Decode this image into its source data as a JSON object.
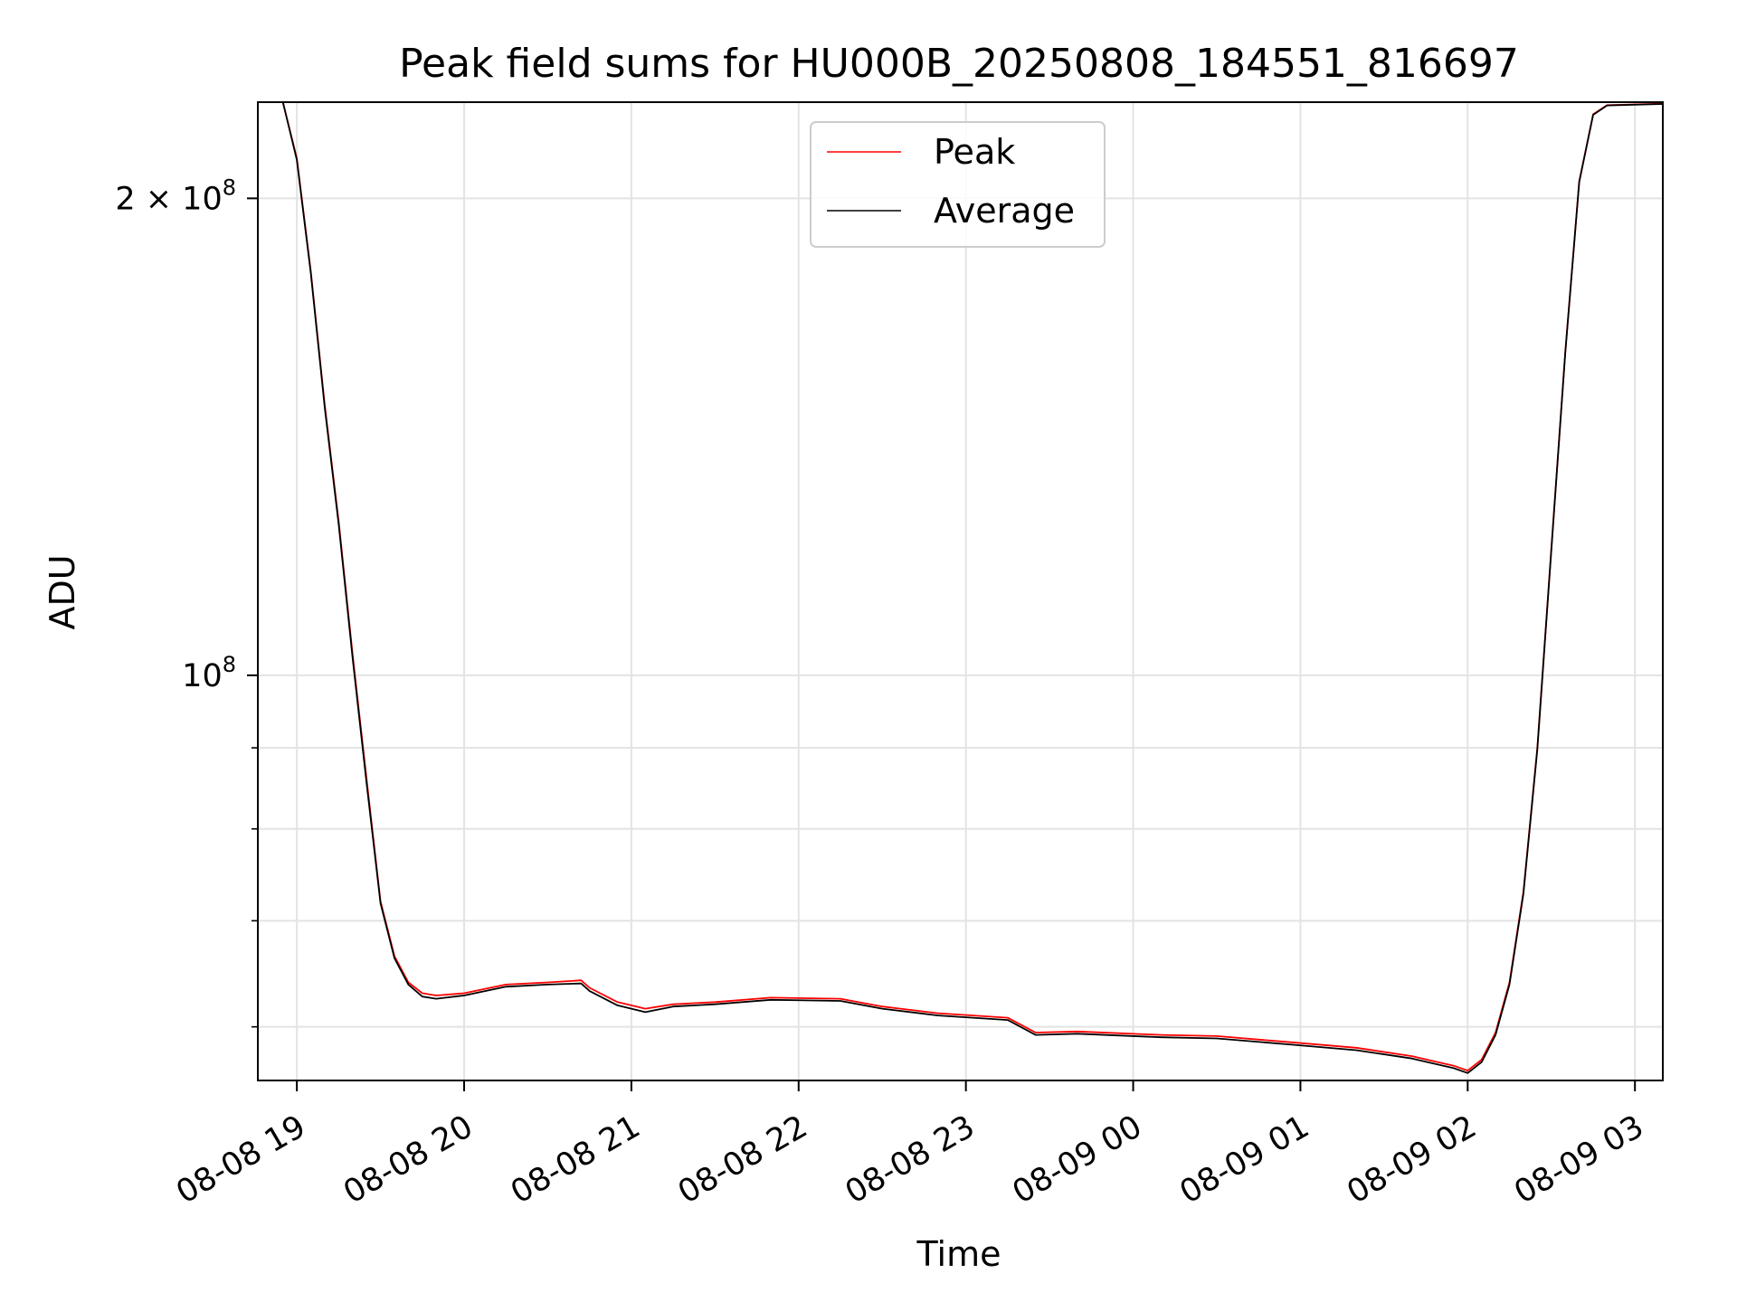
{
  "chart_data": {
    "type": "line",
    "title": "Peak field sums for HU000B_20250808_184551_816697",
    "xlabel": "Time",
    "ylabel": "ADU",
    "x_ticks": [
      "08-08 19",
      "08-08 20",
      "08-08 21",
      "08-08 22",
      "08-08 23",
      "08-09 00",
      "08-09 01",
      "08-09 02",
      "08-09 03"
    ],
    "y_ticks": [
      {
        "base": "2 × 10",
        "exp": "8"
      },
      {
        "base": "10",
        "exp": "8"
      }
    ],
    "y_scale": "log",
    "ylim": [
      55500000,
      230000000
    ],
    "xlim": [
      "2025-08-08 18:46",
      "2025-08-09 03:10"
    ],
    "grid": true,
    "legend_position": "top-center",
    "series": [
      {
        "name": "Peak",
        "color": "#ff0000",
        "x": [
          "2025-08-08 18:46",
          "2025-08-08 18:55",
          "2025-08-08 19:00",
          "2025-08-08 19:05",
          "2025-08-08 19:10",
          "2025-08-08 19:15",
          "2025-08-08 19:20",
          "2025-08-08 19:25",
          "2025-08-08 19:30",
          "2025-08-08 19:35",
          "2025-08-08 19:40",
          "2025-08-08 19:45",
          "2025-08-08 19:50",
          "2025-08-08 20:00",
          "2025-08-08 20:15",
          "2025-08-08 20:30",
          "2025-08-08 20:42",
          "2025-08-08 20:45",
          "2025-08-08 20:55",
          "2025-08-08 21:05",
          "2025-08-08 21:15",
          "2025-08-08 21:30",
          "2025-08-08 21:50",
          "2025-08-08 22:15",
          "2025-08-08 22:30",
          "2025-08-08 22:50",
          "2025-08-08 23:15",
          "2025-08-08 23:25",
          "2025-08-08 23:40",
          "2025-08-09 00:10",
          "2025-08-09 00:30",
          "2025-08-09 00:55",
          "2025-08-09 01:20",
          "2025-08-09 01:40",
          "2025-08-09 01:55",
          "2025-08-09 02:00",
          "2025-08-09 02:05",
          "2025-08-09 02:10",
          "2025-08-09 02:15",
          "2025-08-09 02:20",
          "2025-08-09 02:25",
          "2025-08-09 02:30",
          "2025-08-09 02:35",
          "2025-08-09 02:40",
          "2025-08-09 02:45",
          "2025-08-09 02:50",
          "2025-08-09 03:10"
        ],
        "y": [
          230000000,
          230000000,
          212000000,
          180000000,
          148000000,
          125000000,
          103000000,
          86000000,
          72000000,
          66500000,
          64000000,
          63000000,
          62800000,
          63000000,
          63800000,
          64000000,
          64200000,
          63500000,
          62200000,
          61600000,
          62000000,
          62200000,
          62600000,
          62500000,
          61800000,
          61200000,
          60800000,
          59500000,
          59600000,
          59300000,
          59200000,
          58700000,
          58200000,
          57500000,
          56700000,
          56300000,
          57200000,
          59500000,
          64000000,
          73000000,
          90000000,
          120000000,
          160000000,
          205000000,
          226000000,
          229000000,
          229500000
        ]
      },
      {
        "name": "Average",
        "color": "#000000",
        "x": [
          "2025-08-08 18:46",
          "2025-08-08 18:55",
          "2025-08-08 19:00",
          "2025-08-08 19:05",
          "2025-08-08 19:10",
          "2025-08-08 19:15",
          "2025-08-08 19:20",
          "2025-08-08 19:25",
          "2025-08-08 19:30",
          "2025-08-08 19:35",
          "2025-08-08 19:40",
          "2025-08-08 19:45",
          "2025-08-08 19:50",
          "2025-08-08 20:00",
          "2025-08-08 20:15",
          "2025-08-08 20:30",
          "2025-08-08 20:42",
          "2025-08-08 20:45",
          "2025-08-08 20:55",
          "2025-08-08 21:05",
          "2025-08-08 21:15",
          "2025-08-08 21:30",
          "2025-08-08 21:50",
          "2025-08-08 22:15",
          "2025-08-08 22:30",
          "2025-08-08 22:50",
          "2025-08-08 23:15",
          "2025-08-08 23:25",
          "2025-08-08 23:40",
          "2025-08-09 00:10",
          "2025-08-09 00:30",
          "2025-08-09 00:55",
          "2025-08-09 01:20",
          "2025-08-09 01:40",
          "2025-08-09 01:55",
          "2025-08-09 02:00",
          "2025-08-09 02:05",
          "2025-08-09 02:10",
          "2025-08-09 02:15",
          "2025-08-09 02:20",
          "2025-08-09 02:25",
          "2025-08-09 02:30",
          "2025-08-09 02:35",
          "2025-08-09 02:40",
          "2025-08-09 02:45",
          "2025-08-09 02:50",
          "2025-08-09 03:10"
        ],
        "y": [
          230000000,
          230000000,
          211500000,
          179500000,
          147500000,
          124500000,
          102500000,
          85500000,
          71800000,
          66300000,
          63800000,
          62700000,
          62500000,
          62800000,
          63600000,
          63800000,
          63900000,
          63200000,
          61900000,
          61300000,
          61800000,
          62000000,
          62400000,
          62300000,
          61600000,
          61000000,
          60600000,
          59300000,
          59400000,
          59100000,
          59000000,
          58500000,
          58000000,
          57300000,
          56500000,
          56100000,
          57000000,
          59300000,
          63800000,
          72800000,
          89800000,
          119800000,
          159800000,
          204800000,
          225800000,
          228900000,
          229400000
        ]
      }
    ]
  }
}
